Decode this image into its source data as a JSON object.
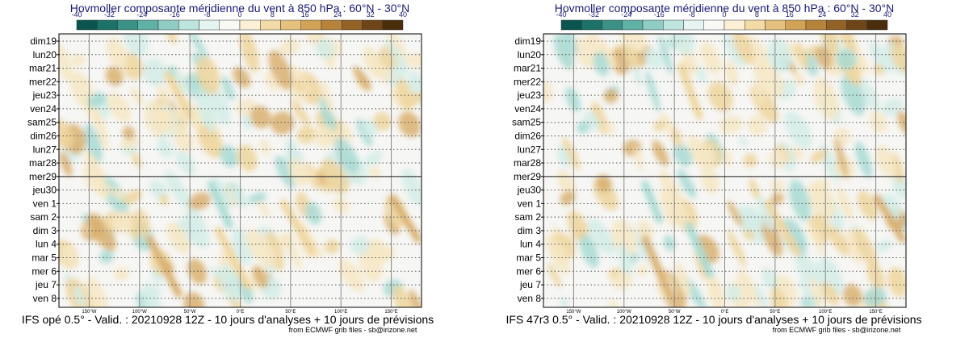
{
  "chart_data": [
    {
      "type": "heatmap",
      "title": "Hovmoller composante méridienne du vent à 850 hPa : 60°N - 30°N",
      "model_line": "IFS opé 0.5° - Valid. : 20210928 12Z - 10 jours d'analyses + 10 jours de prévisions",
      "credit": "from ECMWF grib files - sb@irizone.net",
      "colorbar_ticks": [
        "-40",
        "-32",
        "-24",
        "-16",
        "-8",
        "0",
        "8",
        "16",
        "24",
        "32",
        "40"
      ],
      "colorbar_colors": [
        "#0b5550",
        "#1b7269",
        "#3a9287",
        "#5fb0a5",
        "#8fcdc4",
        "#bfe5df",
        "#e6f4f1",
        "#f8f8f4",
        "#fbf0d6",
        "#f2dba6",
        "#e4c17d",
        "#d2a257",
        "#b7823a",
        "#946126",
        "#6e4516",
        "#4a2e0c"
      ],
      "days": [
        {
          "label": "dim19",
          "weekend": true
        },
        {
          "label": "lun20",
          "weekend": false
        },
        {
          "label": "mar21",
          "weekend": false
        },
        {
          "label": "mer22",
          "weekend": false
        },
        {
          "label": "jeu23",
          "weekend": false
        },
        {
          "label": "ven24",
          "weekend": false
        },
        {
          "label": "sam25",
          "weekend": false
        },
        {
          "label": "dim26",
          "weekend": true
        },
        {
          "label": "lun27",
          "weekend": false
        },
        {
          "label": "mar28",
          "weekend": false
        },
        {
          "label": "mer29",
          "weekend": false
        },
        {
          "label": "jeu30",
          "weekend": false
        },
        {
          "label": "ven 1",
          "weekend": false
        },
        {
          "label": "sam 2",
          "weekend": false
        },
        {
          "label": "dim 3",
          "weekend": true
        },
        {
          "label": "lun 4",
          "weekend": false
        },
        {
          "label": "mar 5",
          "weekend": false
        },
        {
          "label": "mer 6",
          "weekend": false
        },
        {
          "label": "jeu 7",
          "weekend": false
        },
        {
          "label": "ven 8",
          "weekend": false
        }
      ],
      "longitudes": [
        "150°W",
        "100°W",
        "50°W",
        "0°E",
        "50°E",
        "100°E",
        "150°E"
      ],
      "lon_values": [
        -150,
        -100,
        -50,
        0,
        50,
        100,
        150
      ],
      "xlim": [
        -180,
        180
      ],
      "analysis_forecast_split_day": 10
    },
    {
      "type": "heatmap",
      "title": "Hovmoller composante méridienne du vent à 850 hPa : 60°N - 30°N",
      "model_line": "IFS 47r3 0.5° - Valid. : 20210928 12Z - 10 jours d'analyses + 10 jours de prévisions",
      "credit": "from ECMWF grib files - sb@irizone.net",
      "colorbar_ticks": [
        "-40",
        "-32",
        "-24",
        "-16",
        "-8",
        "0",
        "8",
        "16",
        "24",
        "32",
        "40"
      ],
      "colorbar_colors": [
        "#0b5550",
        "#1b7269",
        "#3a9287",
        "#5fb0a5",
        "#8fcdc4",
        "#bfe5df",
        "#e6f4f1",
        "#f8f8f4",
        "#fbf0d6",
        "#f2dba6",
        "#e4c17d",
        "#d2a257",
        "#b7823a",
        "#946126",
        "#6e4516",
        "#4a2e0c"
      ],
      "days": [
        {
          "label": "dim19",
          "weekend": true
        },
        {
          "label": "lun20",
          "weekend": false
        },
        {
          "label": "mar21",
          "weekend": false
        },
        {
          "label": "mer22",
          "weekend": false
        },
        {
          "label": "jeu23",
          "weekend": false
        },
        {
          "label": "ven24",
          "weekend": false
        },
        {
          "label": "sam25",
          "weekend": false
        },
        {
          "label": "dim26",
          "weekend": true
        },
        {
          "label": "lun27",
          "weekend": false
        },
        {
          "label": "mar28",
          "weekend": false
        },
        {
          "label": "mer29",
          "weekend": false
        },
        {
          "label": "jeu30",
          "weekend": false
        },
        {
          "label": "ven 1",
          "weekend": false
        },
        {
          "label": "sam 2",
          "weekend": false
        },
        {
          "label": "dim 3",
          "weekend": true
        },
        {
          "label": "lun 4",
          "weekend": false
        },
        {
          "label": "mar 5",
          "weekend": false
        },
        {
          "label": "mer 6",
          "weekend": false
        },
        {
          "label": "jeu 7",
          "weekend": false
        },
        {
          "label": "ven 8",
          "weekend": false
        }
      ],
      "longitudes": [
        "150°W",
        "100°W",
        "50°W",
        "0°E",
        "50°E",
        "100°E",
        "150°E"
      ],
      "lon_values": [
        -150,
        -100,
        -50,
        0,
        50,
        100,
        150
      ],
      "xlim": [
        -180,
        180
      ],
      "analysis_forecast_split_day": 10
    }
  ],
  "colors": {
    "weekend_label": "#e00000",
    "weekday_label": "#000000",
    "title": "#1a1a7a"
  }
}
